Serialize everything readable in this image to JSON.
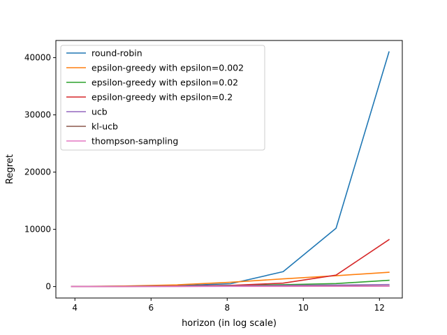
{
  "chart_data": {
    "type": "line",
    "xlabel": "horizon (in log scale)",
    "ylabel": "Regret",
    "xlim": [
      3.5,
      12.6
    ],
    "ylim": [
      -2000,
      43000
    ],
    "xticks": [
      4,
      6,
      8,
      10,
      12
    ],
    "yticks": [
      0,
      10000,
      20000,
      30000,
      40000
    ],
    "grid": false,
    "legend_position": "top-left",
    "x": [
      3.91,
      5.3,
      6.68,
      8.09,
      9.47,
      10.86,
      12.25
    ],
    "series": [
      {
        "name": "round-robin",
        "color": "#1f77b4",
        "values": [
          0,
          60,
          150,
          500,
          2600,
          10200,
          41000
        ]
      },
      {
        "name": "epsilon-greedy with epsilon=0.002",
        "color": "#ff7f0e",
        "values": [
          0,
          100,
          300,
          750,
          1350,
          1900,
          2500
        ]
      },
      {
        "name": "epsilon-greedy with epsilon=0.02",
        "color": "#2ca02c",
        "values": [
          0,
          40,
          100,
          200,
          330,
          520,
          1100
        ]
      },
      {
        "name": "epsilon-greedy with epsilon=0.2",
        "color": "#d62728",
        "values": [
          0,
          40,
          100,
          200,
          600,
          2000,
          8200
        ]
      },
      {
        "name": "ucb",
        "color": "#9467bd",
        "values": [
          0,
          30,
          70,
          130,
          200,
          270,
          350
        ]
      },
      {
        "name": "kl-ucb",
        "color": "#8c564b",
        "values": [
          0,
          20,
          40,
          60,
          80,
          100,
          120
        ]
      },
      {
        "name": "thompson-sampling",
        "color": "#e377c2",
        "values": [
          0,
          10,
          20,
          30,
          40,
          50,
          60
        ]
      }
    ]
  }
}
